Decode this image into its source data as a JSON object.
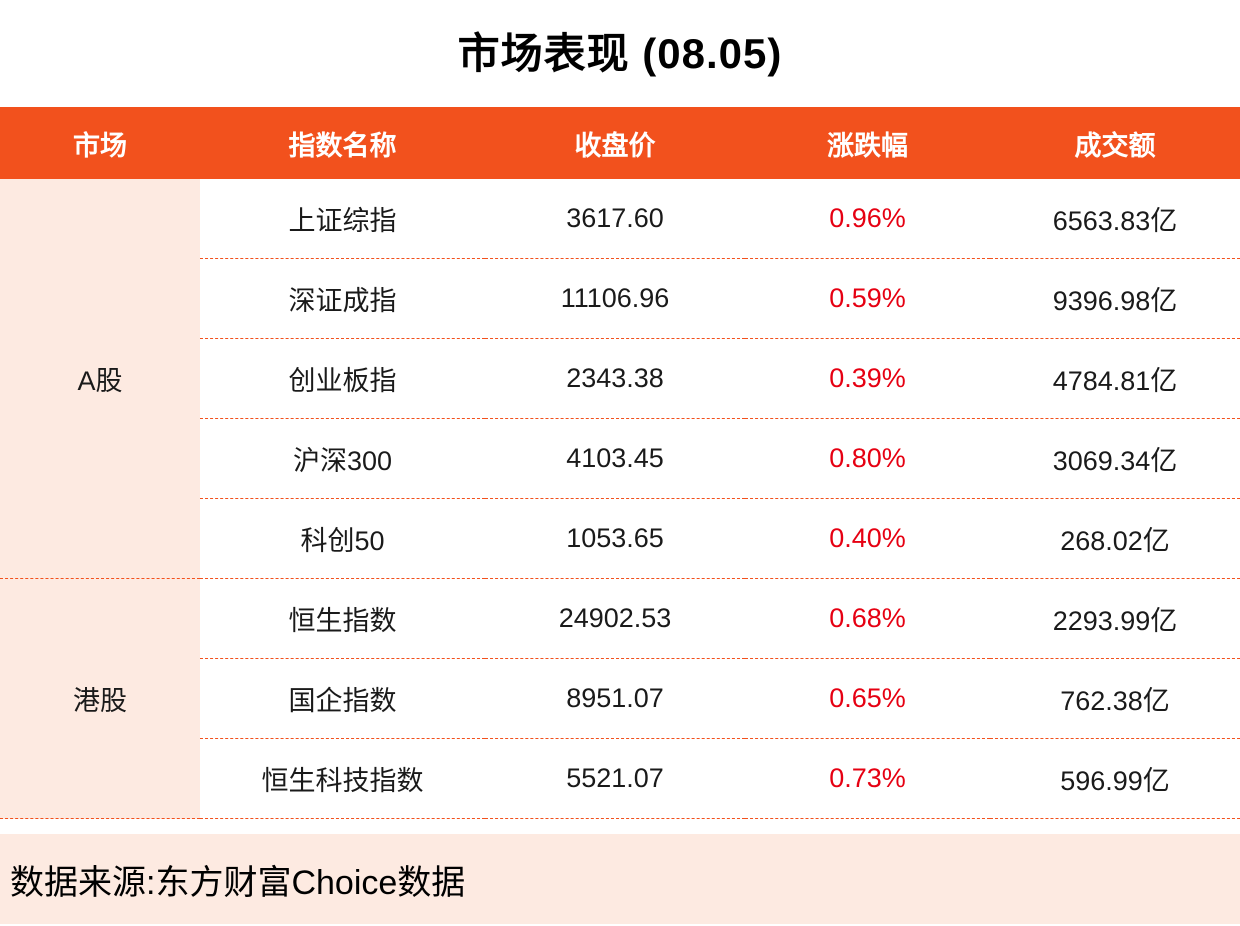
{
  "title": "市场表现 (08.05)",
  "table": {
    "headers": [
      "市场",
      "指数名称",
      "收盘价",
      "涨跌幅",
      "成交额"
    ],
    "groups": [
      {
        "market": "A股",
        "rows": [
          {
            "name": "上证综指",
            "close": "3617.60",
            "change": "0.96%",
            "turnover": "6563.83亿"
          },
          {
            "name": "深证成指",
            "close": "11106.96",
            "change": "0.59%",
            "turnover": "9396.98亿"
          },
          {
            "name": "创业板指",
            "close": "2343.38",
            "change": "0.39%",
            "turnover": "4784.81亿"
          },
          {
            "name": "沪深300",
            "close": "4103.45",
            "change": "0.80%",
            "turnover": "3069.34亿"
          },
          {
            "name": "科创50",
            "close": "1053.65",
            "change": "0.40%",
            "turnover": "268.02亿"
          }
        ]
      },
      {
        "market": "港股",
        "rows": [
          {
            "name": "恒生指数",
            "close": "24902.53",
            "change": "0.68%",
            "turnover": "2293.99亿"
          },
          {
            "name": "国企指数",
            "close": "8951.07",
            "change": "0.65%",
            "turnover": "762.38亿"
          },
          {
            "name": "恒生科技指数",
            "close": "5521.07",
            "change": "0.73%",
            "turnover": "596.99亿"
          }
        ]
      }
    ]
  },
  "footer": {
    "source": "数据来源:东方财富Choice数据"
  },
  "colors": {
    "header_bg": "#F2511D",
    "group_bg": "#FDEAE1",
    "change_red": "#E60012",
    "dashed_line": "#F2511D",
    "footer_bg": "#FDEAE1",
    "bottom_line": "#F2511D"
  },
  "chart_data": {
    "type": "table",
    "title": "市场表现 (08.05)",
    "columns": [
      "市场",
      "指数名称",
      "收盘价",
      "涨跌幅",
      "成交额"
    ],
    "rows": [
      [
        "A股",
        "上证综指",
        3617.6,
        "0.96%",
        "6563.83亿"
      ],
      [
        "A股",
        "深证成指",
        11106.96,
        "0.59%",
        "9396.98亿"
      ],
      [
        "A股",
        "创业板指",
        2343.38,
        "0.39%",
        "4784.81亿"
      ],
      [
        "A股",
        "沪深300",
        4103.45,
        "0.80%",
        "3069.34亿"
      ],
      [
        "A股",
        "科创50",
        1053.65,
        "0.40%",
        "268.02亿"
      ],
      [
        "港股",
        "恒生指数",
        24902.53,
        "0.68%",
        "2293.99亿"
      ],
      [
        "港股",
        "国企指数",
        8951.07,
        "0.65%",
        "762.38亿"
      ],
      [
        "港股",
        "恒生科技指数",
        5521.07,
        "0.73%",
        "596.99亿"
      ]
    ],
    "notes": "涨跌幅 values rendered in red; 数据来源:东方财富Choice数据"
  }
}
